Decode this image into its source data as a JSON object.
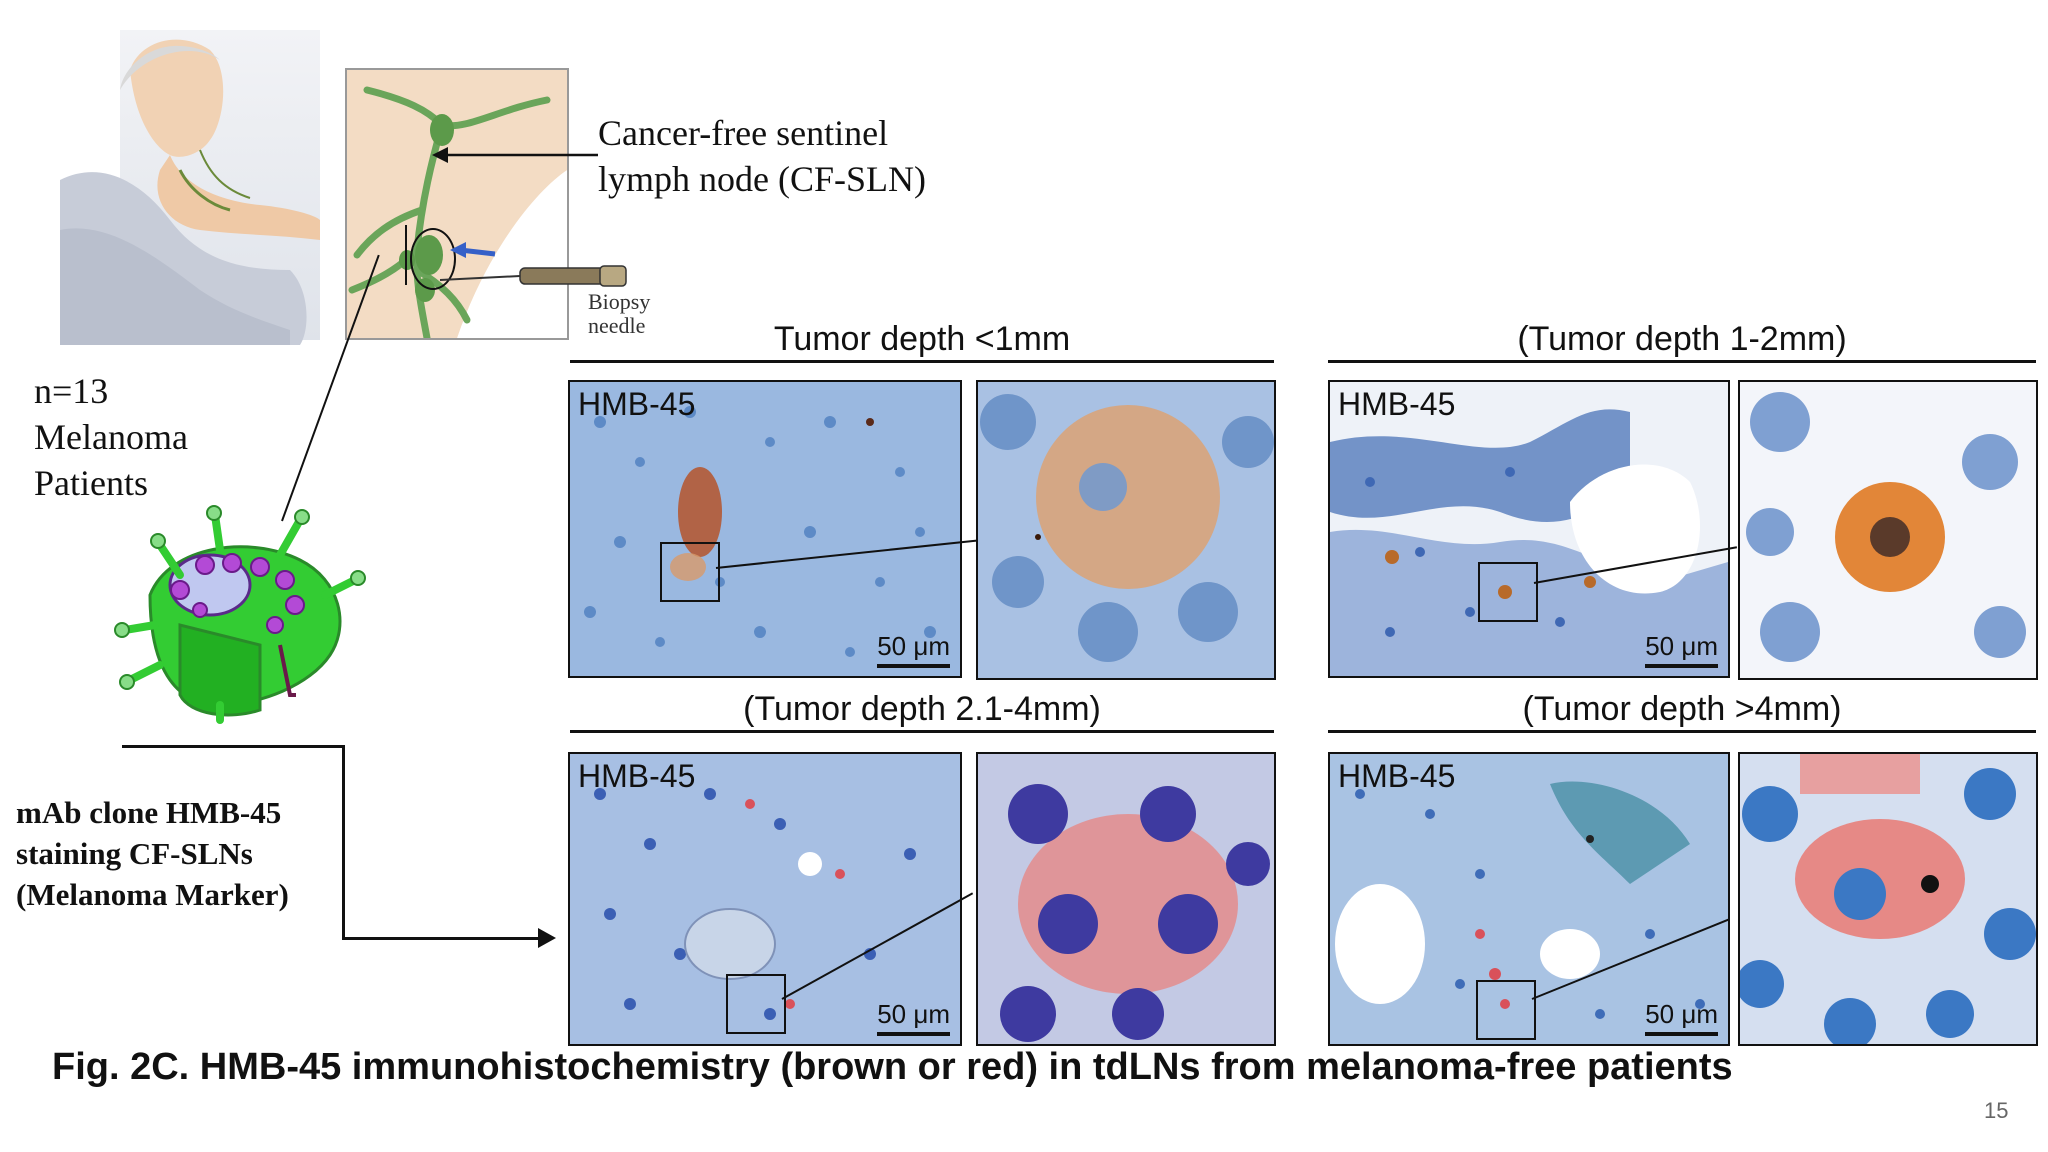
{
  "annotations": {
    "sentinel_label_line1": "Cancer-free sentinel",
    "sentinel_label_line2": "lymph node (CF-SLN)",
    "biopsy_line1": "Biopsy",
    "biopsy_line2": "needle",
    "patients_line1": "n=13",
    "patients_line2": "Melanoma",
    "patients_line3": "Patients",
    "stain_line1": "mAb clone HMB-45",
    "stain_line2": "staining CF-SLNs",
    "stain_line3": "(Melanoma Marker)"
  },
  "panels": [
    {
      "title": "Tumor depth <1mm",
      "stain": "HMB-45",
      "scale": "50 μm"
    },
    {
      "title": "(Tumor depth 1-2mm)",
      "stain": "HMB-45",
      "scale": "50 μm"
    },
    {
      "title": "(Tumor depth 2.1-4mm)",
      "stain": "HMB-45",
      "scale": "50 μm"
    },
    {
      "title": "(Tumor depth >4mm)",
      "stain": "HMB-45",
      "scale": "50 μm"
    }
  ],
  "caption": "Fig. 2C. HMB-45 immunohistochemistry (brown or red) in tdLNs from melanoma-free patients",
  "page_number": "15",
  "colors": {
    "tissue_blue": "#6f95c9",
    "stain_brown": "#c0652a",
    "stain_red": "#d9515a",
    "vessel_green": "#4fa553"
  }
}
